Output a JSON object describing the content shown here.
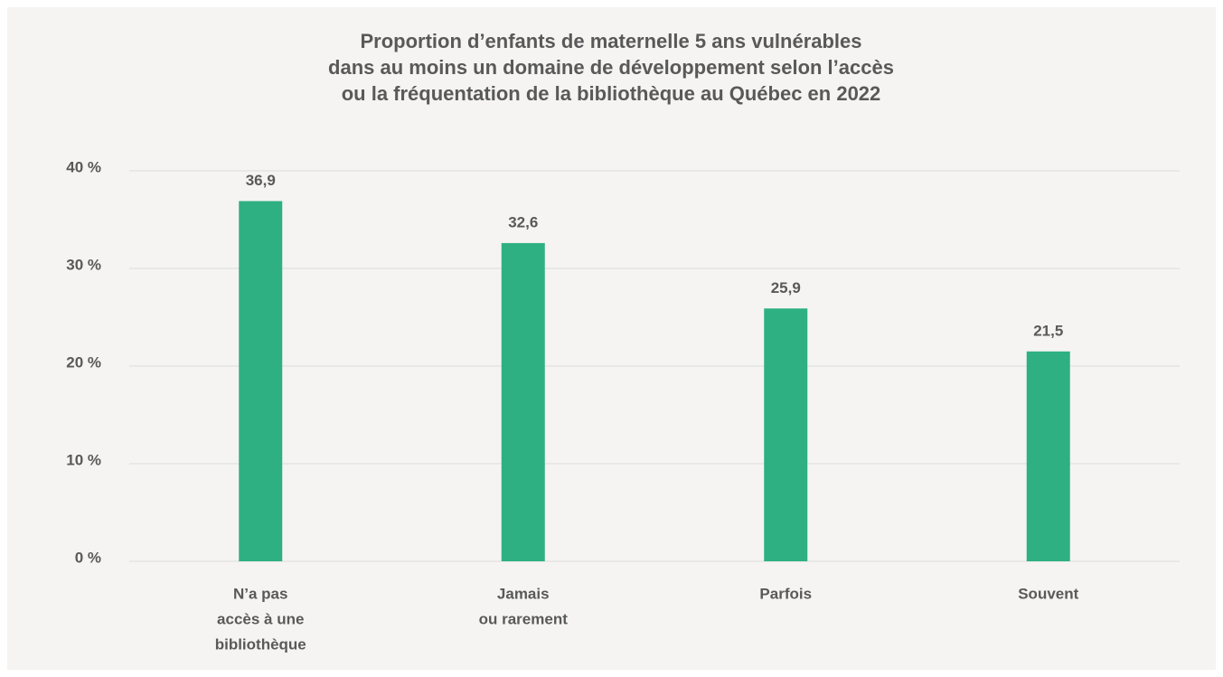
{
  "chart_data": {
    "type": "bar",
    "title": [
      "Proportion d’enfants de maternelle 5 ans vulnérables",
      "dans au moins un domaine de développement selon l’accès",
      "ou la fréquentation de la bibliothèque au Québec en 2022"
    ],
    "categories": [
      [
        "N’a pas",
        "accès à une",
        "bibliothèque"
      ],
      [
        "Jamais",
        "ou rarement"
      ],
      [
        "Parfois"
      ],
      [
        "Souvent"
      ]
    ],
    "values": [
      36.9,
      32.6,
      25.9,
      21.5
    ],
    "value_labels": [
      "36,9",
      "32,6",
      "25,9",
      "21,5"
    ],
    "color": "#2eb082",
    "ylim": [
      0,
      40
    ],
    "yticks": [
      {
        "value": 0,
        "label": "0 %"
      },
      {
        "value": 10,
        "label": "10 %"
      },
      {
        "value": 20,
        "label": "20 %"
      },
      {
        "value": 30,
        "label": "30 %"
      },
      {
        "value": 40,
        "label": "40 %"
      }
    ],
    "grid": true
  }
}
